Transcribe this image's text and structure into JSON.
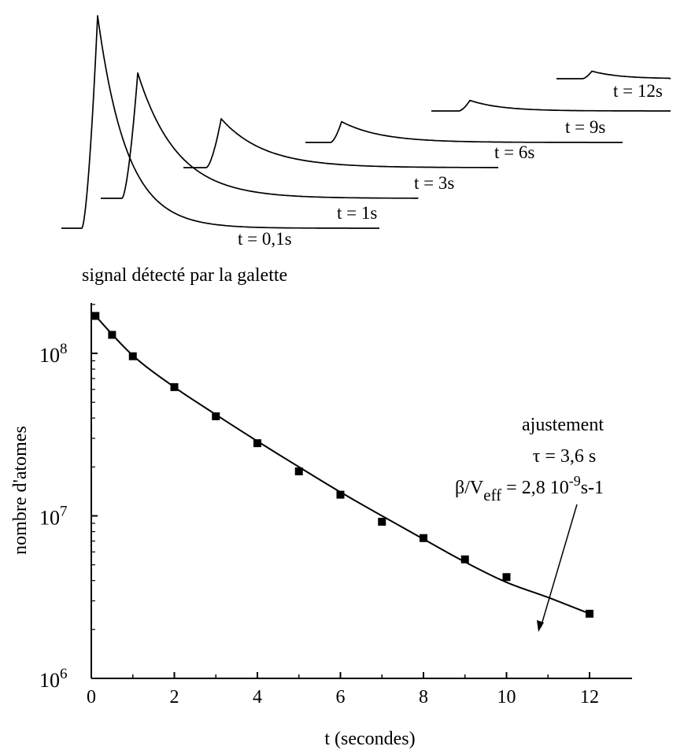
{
  "top_panel": {
    "caption": "signal détecté par la galette",
    "traces": [
      {
        "label": "t = 0,1s",
        "time_s": 0.1,
        "peak_rel": 1.0
      },
      {
        "label": "t = 1s",
        "time_s": 1,
        "peak_rel": 0.59
      },
      {
        "label": "t = 3s",
        "time_s": 3,
        "peak_rel": 0.23
      },
      {
        "label": "t = 6s",
        "time_s": 6,
        "peak_rel": 0.11
      },
      {
        "label": "t = 9s",
        "time_s": 9,
        "peak_rel": 0.056
      },
      {
        "label": "t = 12s",
        "time_s": 12,
        "peak_rel": 0.024
      }
    ]
  },
  "chart_data": {
    "type": "scatter",
    "xlabel": "t (secondes)",
    "ylabel": "nombre d'atomes",
    "xlim": [
      0,
      13
    ],
    "ylim": [
      1000000,
      200000000
    ],
    "yscale": "log",
    "x_ticks": [
      0,
      2,
      4,
      6,
      8,
      10,
      12
    ],
    "x_tick_labels": [
      "0",
      "2",
      "4",
      "6",
      "8",
      "10",
      "12"
    ],
    "y_ticks": [
      1000000,
      10000000,
      100000000
    ],
    "y_tick_labels": [
      {
        "base": "10",
        "exp": "6"
      },
      {
        "base": "10",
        "exp": "7"
      },
      {
        "base": "10",
        "exp": "8"
      }
    ],
    "grid": false,
    "series": [
      {
        "marker": "square",
        "x": [
          0.1,
          0.5,
          1,
          2,
          3,
          4,
          5,
          6,
          7,
          8,
          9,
          10,
          12
        ],
        "y": [
          170000000,
          130000000,
          96000000,
          62000000,
          41000000,
          28000000,
          18800000,
          13500000,
          9200000,
          7300000,
          5400000,
          4200000,
          2500000
        ]
      },
      {
        "style": "line",
        "x": [
          0.1,
          1,
          2,
          3,
          4,
          5,
          6,
          7,
          8,
          9,
          10,
          11,
          12
        ],
        "y": [
          170000000,
          97000000,
          62000000,
          42000000,
          28800000,
          20000000,
          14000000,
          10000000,
          7200000,
          5200000,
          3900000,
          3150000,
          2500000
        ]
      }
    ],
    "annotation": {
      "line1": "ajustement",
      "line2": "τ = 3,6 s",
      "line3_a": "β/V",
      "line3_sub": "eff",
      "line3_b": " = 2,8 10",
      "line3_sup": "-9",
      "line3_c": "s-1"
    }
  }
}
